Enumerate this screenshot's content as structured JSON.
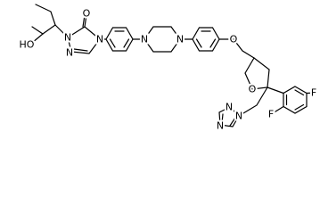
{
  "atoms": [
    "O",
    "HO",
    "N",
    "N",
    "N",
    "N",
    "N",
    "O",
    "O",
    "N",
    "N",
    "N",
    "F",
    "F"
  ]
}
